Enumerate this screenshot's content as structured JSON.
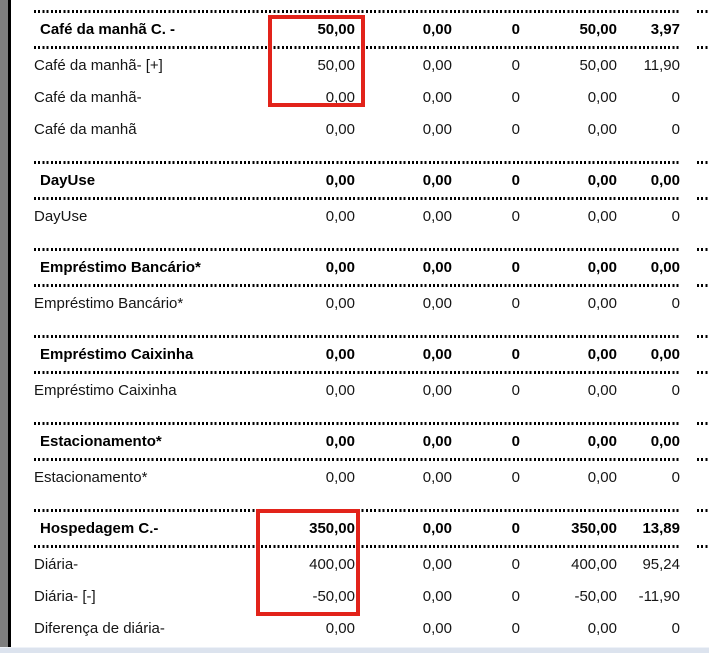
{
  "report": {
    "sections": [
      {
        "header": {
          "label": "Café da manhã C. -",
          "values": [
            "50,00",
            "0,00",
            "0",
            "50,00",
            "3,97"
          ]
        },
        "rows": [
          {
            "label": "Café da manhã- [+]",
            "values": [
              "50,00",
              "0,00",
              "0",
              "50,00",
              "11,90"
            ]
          },
          {
            "label": "Café da manhã-",
            "values": [
              "0,00",
              "0,00",
              "0",
              "0,00",
              "0"
            ]
          },
          {
            "label": "Café da manhã",
            "values": [
              "0,00",
              "0,00",
              "0",
              "0,00",
              "0"
            ]
          }
        ]
      },
      {
        "header": {
          "label": "DayUse",
          "values": [
            "0,00",
            "0,00",
            "0",
            "0,00",
            "0,00"
          ]
        },
        "rows": [
          {
            "label": "DayUse",
            "values": [
              "0,00",
              "0,00",
              "0",
              "0,00",
              "0"
            ]
          }
        ]
      },
      {
        "header": {
          "label": "Empréstimo Bancário*",
          "values": [
            "0,00",
            "0,00",
            "0",
            "0,00",
            "0,00"
          ]
        },
        "rows": [
          {
            "label": "Empréstimo Bancário*",
            "values": [
              "0,00",
              "0,00",
              "0",
              "0,00",
              "0"
            ]
          }
        ]
      },
      {
        "header": {
          "label": "Empréstimo Caixinha",
          "values": [
            "0,00",
            "0,00",
            "0",
            "0,00",
            "0,00"
          ]
        },
        "rows": [
          {
            "label": "Empréstimo Caixinha",
            "values": [
              "0,00",
              "0,00",
              "0",
              "0,00",
              "0"
            ]
          }
        ]
      },
      {
        "header": {
          "label": "Estacionamento*",
          "values": [
            "0,00",
            "0,00",
            "0",
            "0,00",
            "0,00"
          ]
        },
        "rows": [
          {
            "label": "Estacionamento*",
            "values": [
              "0,00",
              "0,00",
              "0",
              "0,00",
              "0"
            ]
          }
        ]
      },
      {
        "header": {
          "label": "Hospedagem C.-",
          "values": [
            "350,00",
            "0,00",
            "0",
            "350,00",
            "13,89"
          ]
        },
        "rows": [
          {
            "label": "Diária-",
            "values": [
              "400,00",
              "0,00",
              "0",
              "400,00",
              "95,24"
            ]
          },
          {
            "label": "Diária- [-]",
            "values": [
              "-50,00",
              "0,00",
              "0",
              "-50,00",
              "-11,90"
            ]
          },
          {
            "label": "Diferença de diária-",
            "values": [
              "0,00",
              "0,00",
              "0",
              "0,00",
              "0"
            ]
          }
        ]
      }
    ]
  },
  "annotations": {
    "highlight_color": "#e2231a",
    "boxes": [
      {
        "name": "highlight-cafe-da-manha-values"
      },
      {
        "name": "highlight-hospedagem-values"
      }
    ]
  },
  "chrome": {
    "edge_gray_color": "#7e7e7e",
    "page_border_color": "#000000",
    "scrollbar_track_color": "#dce3ee"
  }
}
